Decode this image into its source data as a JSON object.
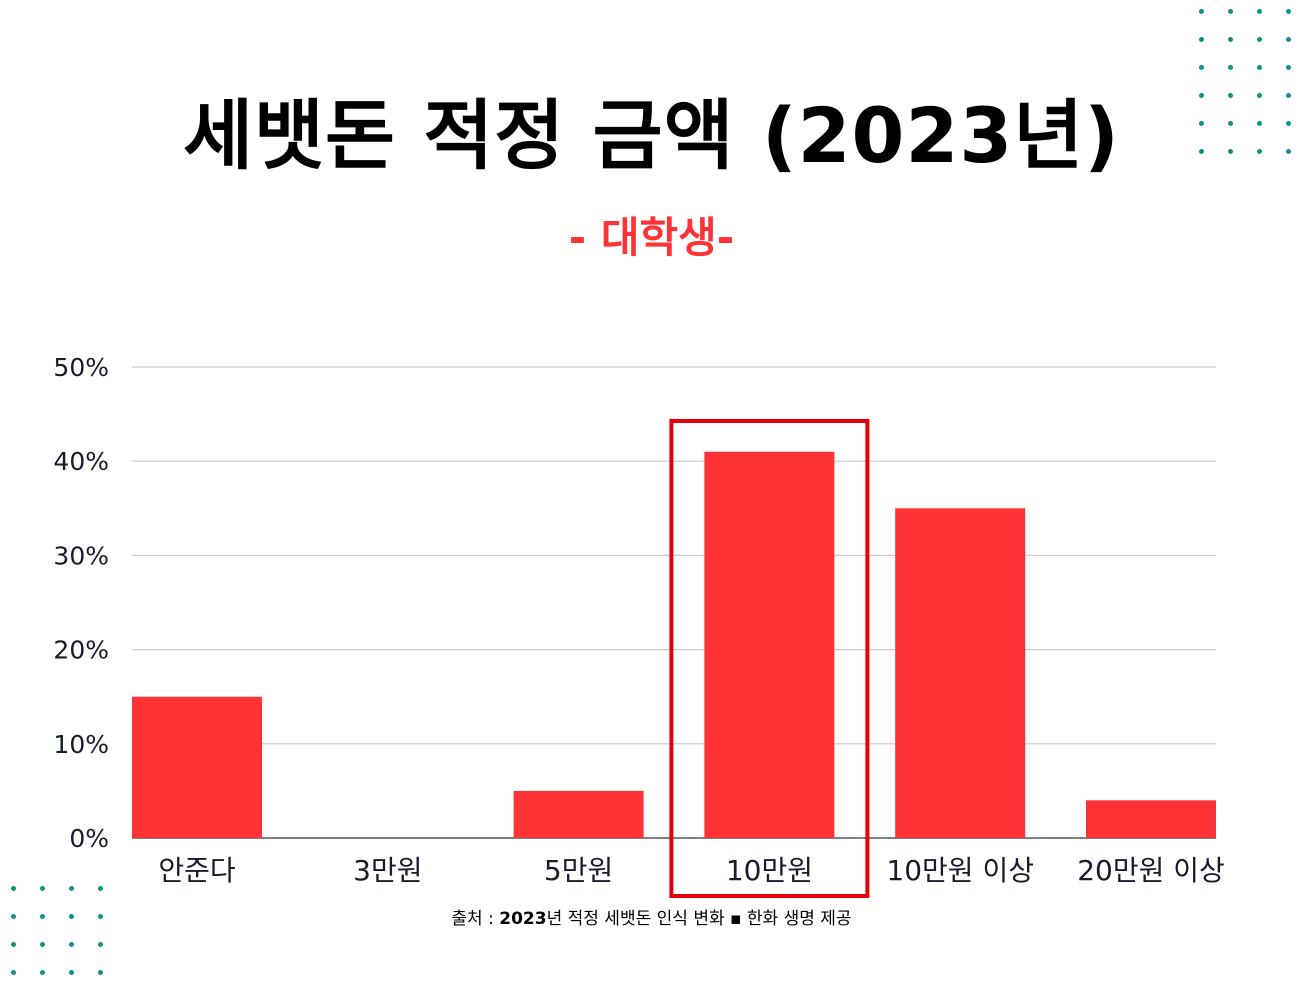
{
  "header": {
    "title": "세뱃돈 적정 금액 (2023년)",
    "subtitle": "- 대학생-"
  },
  "source": {
    "prefix": "출처 : ",
    "bold": "2023",
    "rest": "년 적정 세뱃돈 인식 변화 ▪ 한화 생명 제공"
  },
  "colors": {
    "bar": "#ff3336",
    "highlight_box": "#e6000a",
    "subtitle": "#ff3336",
    "grid": "#cccccc",
    "axis": "#555555",
    "tick_text": "#1a1a2e",
    "dots": "#14918a"
  },
  "chart_data": {
    "type": "bar",
    "categories": [
      "안준다",
      "3만원",
      "5만원",
      "10만원",
      "10만원 이상",
      "20만원 이상"
    ],
    "values": [
      15,
      0,
      5,
      41,
      35,
      4
    ],
    "yticks": [
      "0%",
      "10%",
      "20%",
      "30%",
      "40%",
      "50%"
    ],
    "ylim": [
      0,
      50
    ],
    "grid": true,
    "highlight_category": "10만원",
    "title": "",
    "xlabel": "",
    "ylabel": ""
  }
}
